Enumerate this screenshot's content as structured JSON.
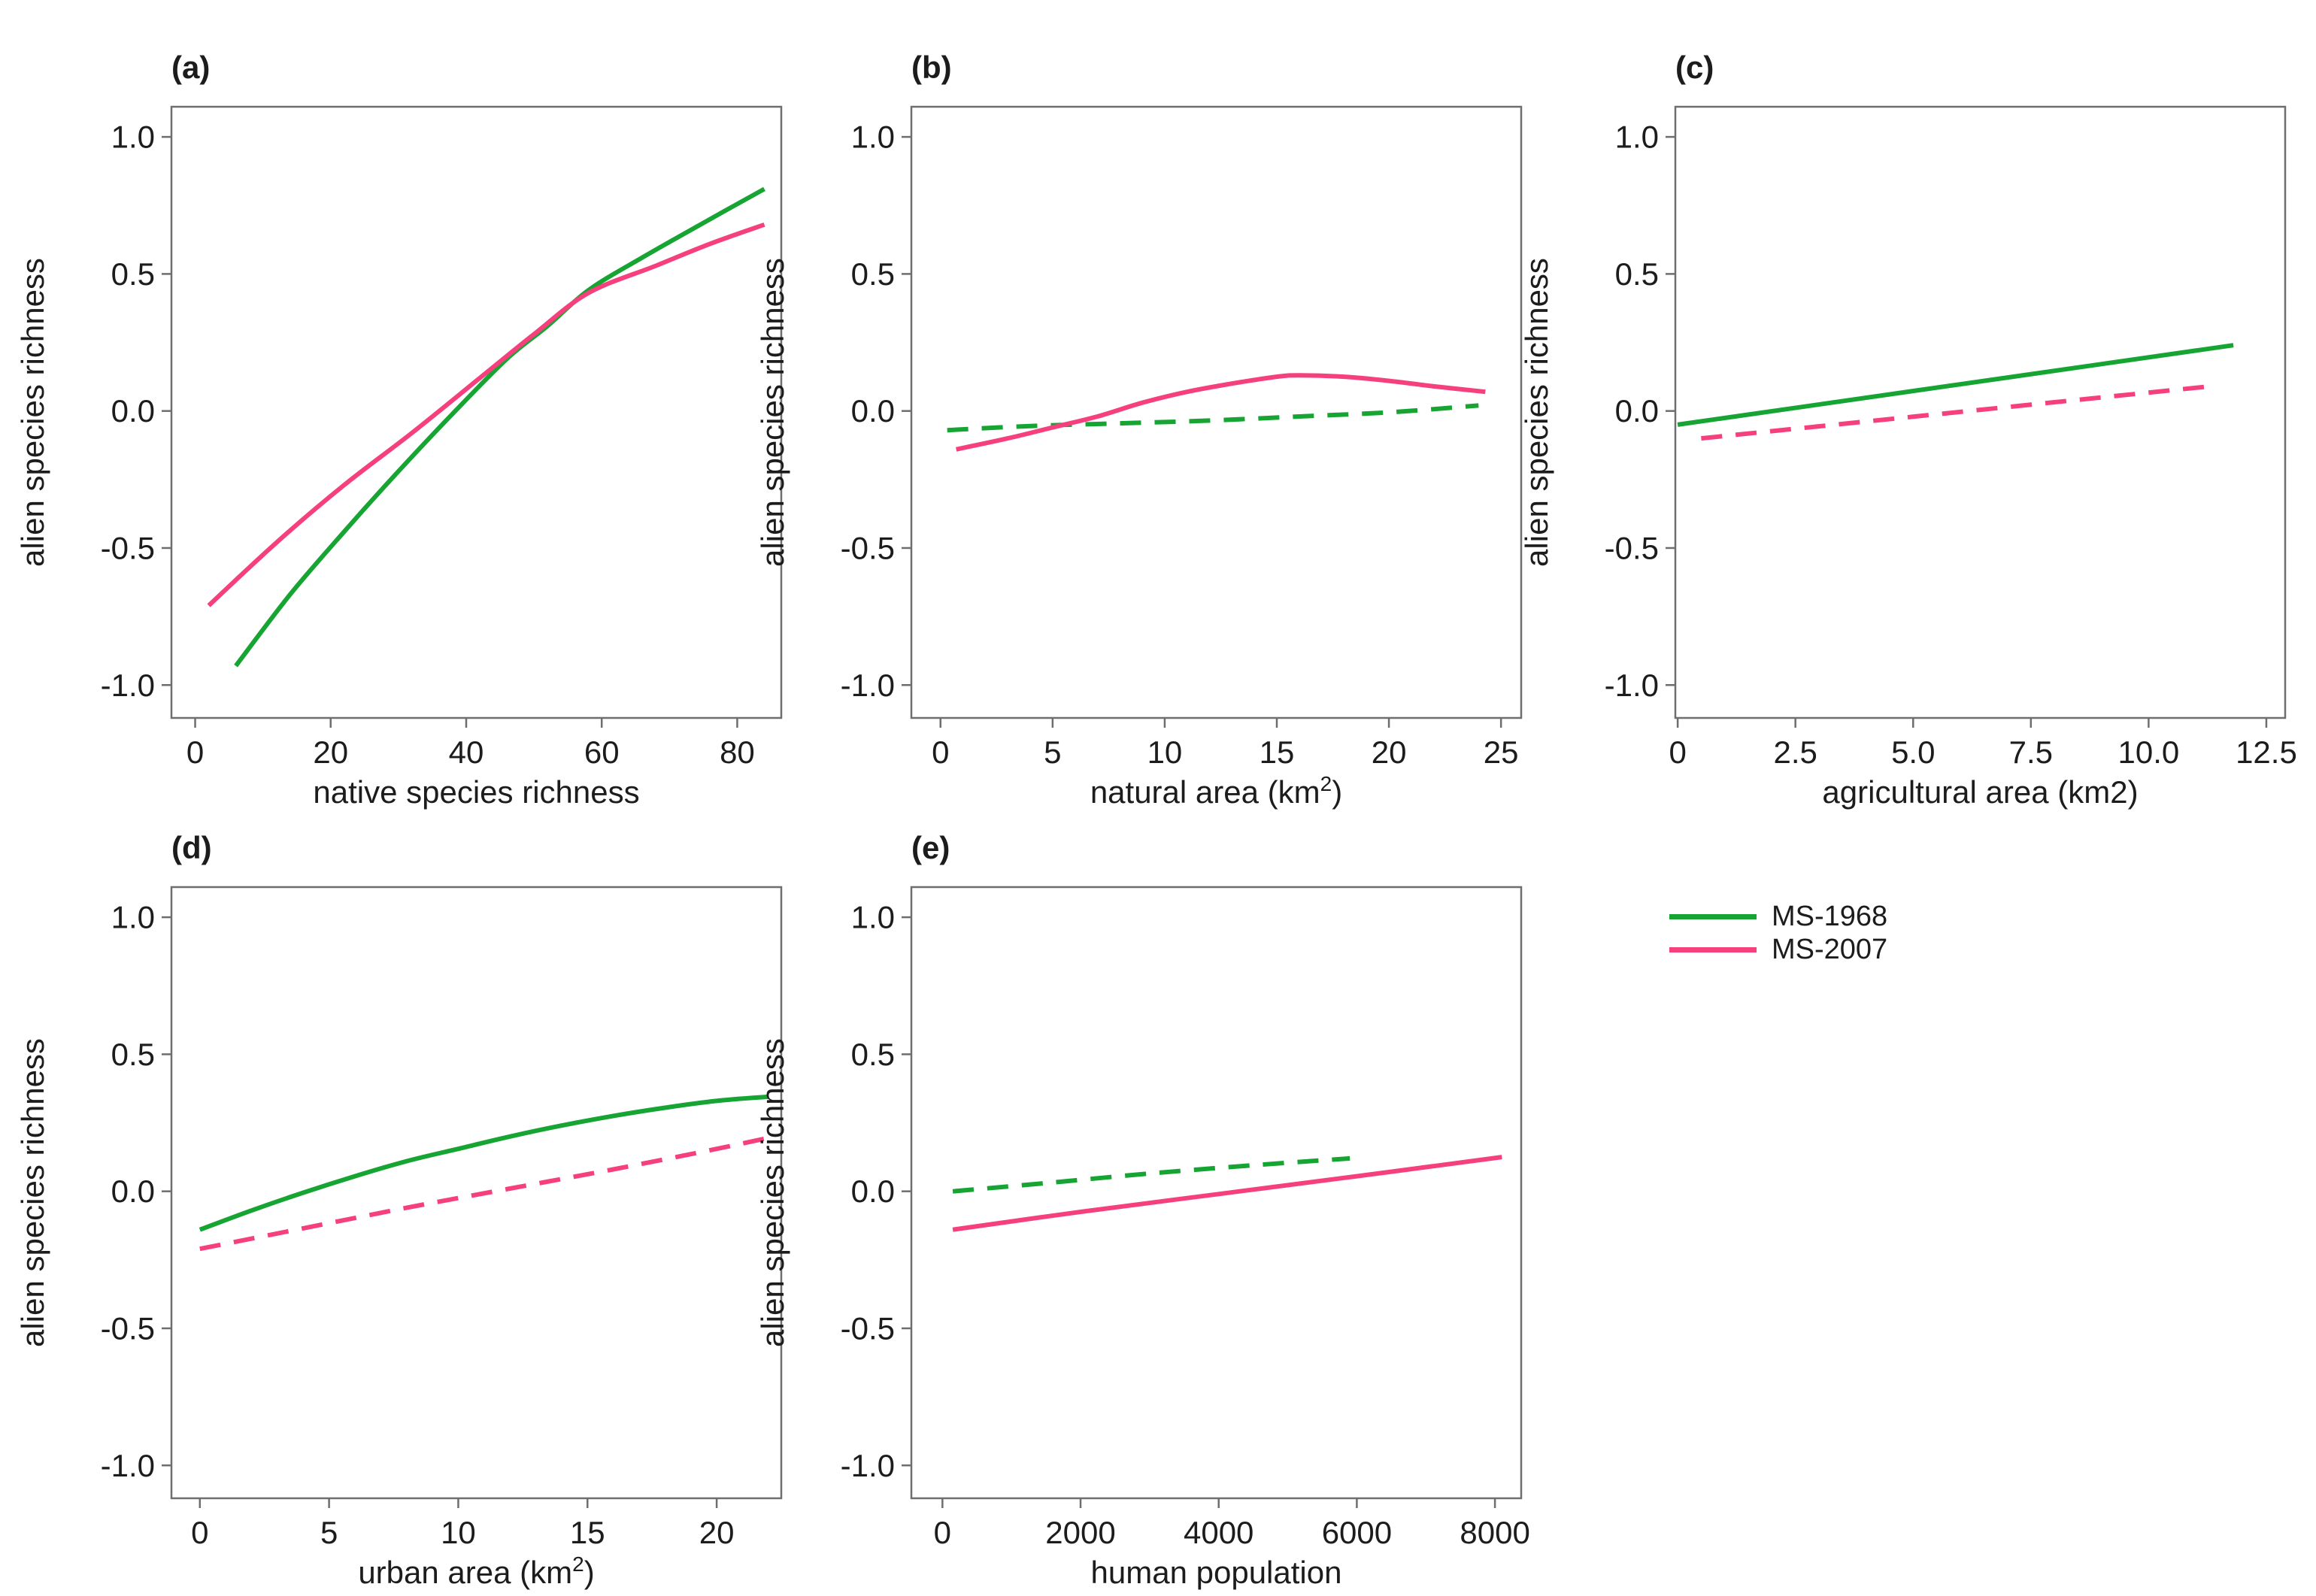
{
  "page": {
    "background": "#ffffff"
  },
  "colors": {
    "green": "#16a432",
    "pink": "#f5407d",
    "axis": "#6e6e6e",
    "text": "#1c1c1c"
  },
  "legend": {
    "position": "bottom-right",
    "items": [
      {
        "label": "MS-1968",
        "color": "green",
        "dashed": false
      },
      {
        "label": "MS-2007",
        "color": "pink",
        "dashed": false
      }
    ]
  },
  "chart_data": [
    {
      "id": "a",
      "panel_label": "(a)",
      "type": "line",
      "xlabel": [
        {
          "t": "native species richness"
        }
      ],
      "ylabel": "alien species richness",
      "xlim": [
        -3.5,
        86.5
      ],
      "ylim": [
        -1.12,
        1.11
      ],
      "grid": false,
      "xticks": [
        {
          "v": 0,
          "t": "0"
        },
        {
          "v": 20,
          "t": "20"
        },
        {
          "v": 40,
          "t": "40"
        },
        {
          "v": 60,
          "t": "60"
        },
        {
          "v": 80,
          "t": "80"
        }
      ],
      "yticks": [
        {
          "v": 1,
          "t": "1.0"
        },
        {
          "v": 0.5,
          "t": "0.5"
        },
        {
          "v": 0,
          "t": "0.0"
        },
        {
          "v": -0.5,
          "t": "-0.5"
        },
        {
          "v": -1,
          "t": "-1.0"
        }
      ],
      "series": [
        {
          "name": "MS-1968",
          "color": "green",
          "dashed": false,
          "x": [
            6,
            14,
            22,
            30,
            38,
            46,
            52,
            58,
            66,
            76,
            84
          ],
          "y": [
            -0.93,
            -0.67,
            -0.44,
            -0.22,
            -0.01,
            0.19,
            0.31,
            0.44,
            0.56,
            0.7,
            0.81
          ]
        },
        {
          "name": "MS-2007",
          "color": "pink",
          "dashed": false,
          "x": [
            2,
            12,
            22,
            32,
            42,
            50,
            58,
            68,
            76,
            84
          ],
          "y": [
            -0.71,
            -0.48,
            -0.27,
            -0.08,
            0.12,
            0.28,
            0.43,
            0.53,
            0.61,
            0.68
          ]
        }
      ]
    },
    {
      "id": "b",
      "panel_label": "(b)",
      "type": "line",
      "xlabel": [
        {
          "t": "natural area (km"
        },
        {
          "t": "2",
          "sup": true
        },
        {
          "t": ")"
        }
      ],
      "ylabel": "alien species richness",
      "xlim": [
        -1.3,
        25.9
      ],
      "ylim": [
        -1.12,
        1.11
      ],
      "grid": false,
      "xticks": [
        {
          "v": 0,
          "t": "0"
        },
        {
          "v": 5,
          "t": "5"
        },
        {
          "v": 10,
          "t": "10"
        },
        {
          "v": 15,
          "t": "15"
        },
        {
          "v": 20,
          "t": "20"
        },
        {
          "v": 25,
          "t": "25"
        }
      ],
      "yticks": [
        {
          "v": 1,
          "t": "1.0"
        },
        {
          "v": 0.5,
          "t": "0.5"
        },
        {
          "v": 0,
          "t": "0.0"
        },
        {
          "v": -0.5,
          "t": "-0.5"
        },
        {
          "v": -1,
          "t": "-1.0"
        }
      ],
      "series": [
        {
          "name": "MS-1968",
          "color": "green",
          "dashed": true,
          "x": [
            0.3,
            4,
            8,
            12,
            16,
            20,
            24
          ],
          "y": [
            -0.07,
            -0.055,
            -0.045,
            -0.035,
            -0.02,
            -0.005,
            0.02
          ]
        },
        {
          "name": "MS-2007",
          "color": "pink",
          "dashed": false,
          "x": [
            0.7,
            3,
            5,
            7,
            9,
            11,
            13,
            15,
            16,
            18,
            20,
            22,
            24.3
          ],
          "y": [
            -0.14,
            -0.1,
            -0.06,
            -0.02,
            0.03,
            0.07,
            0.1,
            0.125,
            0.13,
            0.125,
            0.11,
            0.09,
            0.07
          ]
        }
      ]
    },
    {
      "id": "c",
      "panel_label": "(c)",
      "type": "line",
      "xlabel": [
        {
          "t": "agricultural area (km2)"
        }
      ],
      "ylabel": "alien species richness",
      "xlim": [
        -0.05,
        12.9
      ],
      "ylim": [
        -1.12,
        1.11
      ],
      "grid": false,
      "xticks": [
        {
          "v": 0,
          "t": "0"
        },
        {
          "v": 2.5,
          "t": "2.5"
        },
        {
          "v": 5,
          "t": "5.0"
        },
        {
          "v": 7.5,
          "t": "7.5"
        },
        {
          "v": 10,
          "t": "10.0"
        },
        {
          "v": 12.5,
          "t": "12.5"
        }
      ],
      "yticks": [
        {
          "v": 1,
          "t": "1.0"
        },
        {
          "v": 0.5,
          "t": "0.5"
        },
        {
          "v": 0,
          "t": "0.0"
        },
        {
          "v": -0.5,
          "t": "-0.5"
        },
        {
          "v": -1,
          "t": "-1.0"
        }
      ],
      "series": [
        {
          "name": "MS-1968",
          "color": "green",
          "dashed": false,
          "x": [
            0,
            11.8
          ],
          "y": [
            -0.05,
            0.24
          ]
        },
        {
          "name": "MS-2007",
          "color": "pink",
          "dashed": true,
          "x": [
            0.5,
            11.3
          ],
          "y": [
            -0.1,
            0.09
          ]
        }
      ]
    },
    {
      "id": "d",
      "panel_label": "(d)",
      "type": "line",
      "xlabel": [
        {
          "t": "urban area (km"
        },
        {
          "t": "2",
          "sup": true
        },
        {
          "t": ")"
        }
      ],
      "ylabel": "alien species richness",
      "xlim": [
        -1.1,
        22.5
      ],
      "ylim": [
        -1.12,
        1.11
      ],
      "grid": false,
      "xticks": [
        {
          "v": 0,
          "t": "0"
        },
        {
          "v": 5,
          "t": "5"
        },
        {
          "v": 10,
          "t": "10"
        },
        {
          "v": 15,
          "t": "15"
        },
        {
          "v": 20,
          "t": "20"
        }
      ],
      "yticks": [
        {
          "v": 1,
          "t": "1.0"
        },
        {
          "v": 0.5,
          "t": "0.5"
        },
        {
          "v": 0,
          "t": "0.0"
        },
        {
          "v": -0.5,
          "t": "-0.5"
        },
        {
          "v": -1,
          "t": "-1.0"
        }
      ],
      "series": [
        {
          "name": "MS-1968",
          "color": "green",
          "dashed": false,
          "x": [
            0,
            2,
            4,
            6,
            8,
            10,
            12,
            14,
            16,
            18,
            20,
            22
          ],
          "y": [
            -0.14,
            -0.07,
            -0.005,
            0.055,
            0.11,
            0.155,
            0.2,
            0.24,
            0.275,
            0.305,
            0.33,
            0.345
          ]
        },
        {
          "name": "MS-2007",
          "color": "pink",
          "dashed": true,
          "x": [
            0,
            4,
            8,
            12,
            16,
            20,
            22
          ],
          "y": [
            -0.21,
            -0.135,
            -0.06,
            0.01,
            0.08,
            0.155,
            0.195
          ]
        }
      ]
    },
    {
      "id": "e",
      "panel_label": "(e)",
      "type": "line",
      "xlabel": [
        {
          "t": "human population"
        }
      ],
      "ylabel": "alien species richness",
      "xlim": [
        -450,
        8380
      ],
      "ylim": [
        -1.12,
        1.11
      ],
      "grid": false,
      "xticks": [
        {
          "v": 0,
          "t": "0"
        },
        {
          "v": 2000,
          "t": "2000"
        },
        {
          "v": 4000,
          "t": "4000"
        },
        {
          "v": 6000,
          "t": "6000"
        },
        {
          "v": 8000,
          "t": "8000"
        }
      ],
      "yticks": [
        {
          "v": 1,
          "t": "1.0"
        },
        {
          "v": 0.5,
          "t": "0.5"
        },
        {
          "v": 0,
          "t": "0.0"
        },
        {
          "v": -0.5,
          "t": "-0.5"
        },
        {
          "v": -1,
          "t": "-1.0"
        }
      ],
      "series": [
        {
          "name": "MS-1968",
          "color": "green",
          "dashed": true,
          "x": [
            150,
            1500,
            3000,
            4500,
            5900
          ],
          "y": [
            0.0,
            0.03,
            0.065,
            0.095,
            0.12
          ]
        },
        {
          "name": "MS-2007",
          "color": "pink",
          "dashed": false,
          "x": [
            150,
            2000,
            4000,
            6000,
            8100
          ],
          "y": [
            -0.14,
            -0.075,
            -0.01,
            0.055,
            0.125
          ]
        }
      ]
    }
  ]
}
